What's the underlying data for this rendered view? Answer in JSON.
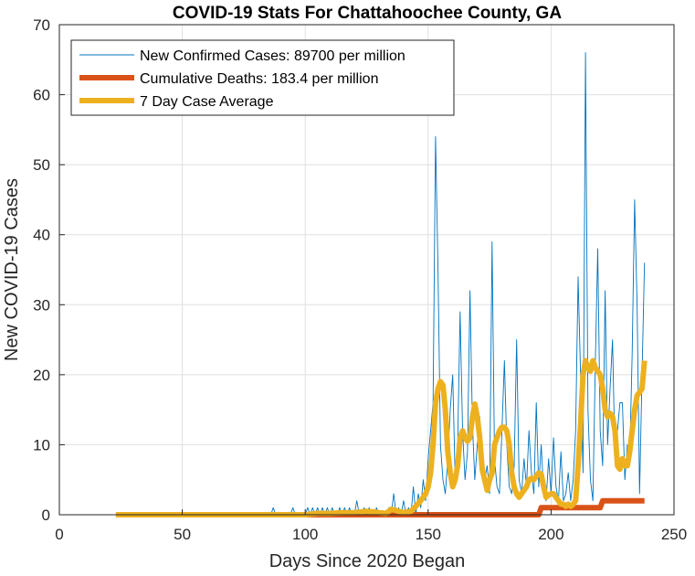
{
  "chart_data": {
    "type": "line",
    "title": "COVID-19 Stats For Chattahoochee County, GA",
    "xlabel": "Days Since 2020 Began",
    "ylabel": "New COVID-19 Cases",
    "xlim": [
      0,
      250
    ],
    "ylim": [
      0,
      70
    ],
    "xticks": [
      0,
      50,
      100,
      150,
      200,
      250
    ],
    "yticks": [
      0,
      10,
      20,
      30,
      40,
      50,
      60,
      70
    ],
    "grid": true,
    "legend_position": "top-left",
    "colors": {
      "new_cases": "#0072BD",
      "deaths": "#D95319",
      "avg": "#EDB120",
      "grid": "#DFDFDF",
      "axis": "#262626"
    },
    "series": [
      {
        "name": "New Confirmed Cases: 89700 per million",
        "x": [
          23,
          86,
          87,
          88,
          94,
          95,
          96,
          100,
          101,
          102,
          103,
          104,
          105,
          106,
          107,
          108,
          109,
          110,
          111,
          112,
          113,
          114,
          115,
          116,
          117,
          118,
          119,
          120,
          121,
          122,
          123,
          124,
          125,
          126,
          127,
          128,
          129,
          130,
          131,
          132,
          133,
          134,
          135,
          136,
          137,
          138,
          139,
          140,
          141,
          142,
          143,
          144,
          145,
          146,
          147,
          148,
          149,
          150,
          151,
          152,
          153,
          154,
          155,
          156,
          157,
          158,
          159,
          160,
          161,
          162,
          163,
          164,
          165,
          166,
          167,
          168,
          169,
          170,
          171,
          172,
          173,
          174,
          175,
          176,
          177,
          178,
          179,
          180,
          181,
          182,
          183,
          184,
          185,
          186,
          187,
          188,
          189,
          190,
          191,
          192,
          193,
          194,
          195,
          196,
          197,
          198,
          199,
          200,
          201,
          202,
          203,
          204,
          205,
          206,
          207,
          208,
          209,
          210,
          211,
          212,
          213,
          214,
          215,
          216,
          217,
          218,
          219,
          220,
          221,
          222,
          223,
          224,
          225,
          226,
          227,
          228,
          229,
          230,
          231,
          232,
          233,
          234,
          235,
          236,
          237,
          238
        ],
        "values": [
          0,
          0,
          1,
          0,
          0,
          1,
          0,
          0,
          1,
          0,
          1,
          0,
          1,
          0,
          1,
          0,
          1,
          0,
          1,
          0,
          0,
          1,
          0,
          1,
          0,
          1,
          0,
          0,
          2,
          0,
          0,
          1,
          0,
          1,
          0,
          0,
          1,
          0,
          0,
          0,
          0,
          1,
          0,
          3,
          0,
          1,
          0,
          2,
          0,
          1,
          0,
          4,
          0,
          3,
          1,
          5,
          2,
          8,
          12,
          16,
          54,
          35,
          10,
          5,
          3,
          8,
          15,
          20,
          5,
          10,
          29,
          12,
          5,
          9,
          32,
          13,
          5,
          10,
          14,
          8,
          5,
          7,
          3,
          39,
          8,
          4,
          3,
          12,
          22,
          10,
          4,
          3,
          7,
          25,
          5,
          3,
          8,
          4,
          12,
          6,
          3,
          16,
          4,
          10,
          3,
          2,
          8,
          3,
          11,
          4,
          2,
          9,
          2,
          3,
          6,
          2,
          5,
          12,
          34,
          20,
          6,
          66,
          15,
          5,
          2,
          22,
          38,
          12,
          7,
          32,
          10,
          18,
          25,
          8,
          12,
          16,
          16,
          5,
          10,
          8,
          23,
          45,
          30,
          3,
          20,
          36
        ],
        "style": "thin"
      },
      {
        "name": "Cumulative Deaths: 183.4 per million",
        "x": [
          23,
          195,
          196,
          220,
          221,
          238
        ],
        "values": [
          0,
          0,
          1,
          1,
          2,
          2
        ],
        "style": "thick"
      },
      {
        "name": "7 Day Case Average",
        "x": [
          23,
          90,
          95,
          100,
          105,
          110,
          115,
          120,
          125,
          128,
          130,
          133,
          135,
          138,
          140,
          143,
          145,
          147,
          149,
          150,
          151,
          152,
          153,
          154,
          155,
          156,
          157,
          158,
          159,
          160,
          161,
          162,
          163,
          164,
          165,
          166,
          167,
          168,
          169,
          170,
          171,
          172,
          173,
          174,
          175,
          176,
          177,
          178,
          179,
          180,
          181,
          182,
          183,
          184,
          185,
          186,
          187,
          188,
          189,
          190,
          191,
          192,
          193,
          194,
          195,
          196,
          197,
          198,
          199,
          200,
          201,
          202,
          203,
          204,
          205,
          206,
          207,
          208,
          209,
          210,
          211,
          212,
          213,
          214,
          215,
          216,
          217,
          218,
          219,
          220,
          221,
          222,
          223,
          224,
          225,
          226,
          227,
          228,
          229,
          230,
          231,
          232,
          233,
          234,
          235,
          236,
          237,
          238
        ],
        "values": [
          0,
          0,
          0,
          0,
          0.2,
          0.2,
          0.3,
          0.3,
          0.5,
          0.4,
          0.3,
          0.2,
          0.8,
          0.5,
          0.3,
          0.5,
          1.2,
          2,
          3,
          4,
          6,
          10,
          16,
          18,
          19,
          18.5,
          15,
          9,
          6,
          4,
          5,
          7,
          11,
          12,
          11,
          10.5,
          11,
          14,
          15.8,
          14,
          11,
          6.5,
          5,
          3.5,
          5,
          6,
          10,
          11,
          12,
          12.5,
          12.5,
          12,
          10,
          6,
          4,
          3,
          2.5,
          3,
          3.5,
          4,
          5,
          5.2,
          5,
          5.5,
          6,
          5.8,
          4,
          2.5,
          2.8,
          3,
          3,
          2.5,
          2,
          1.5,
          1.5,
          1.2,
          1.5,
          1.2,
          1.5,
          2,
          7,
          13,
          20,
          22,
          21,
          20.5,
          22,
          21,
          20.5,
          20,
          18,
          15,
          14,
          14.5,
          14,
          12,
          7,
          6.5,
          8,
          7,
          7,
          9,
          12,
          15,
          17,
          17.5,
          18,
          22
        ],
        "style": "thick"
      }
    ]
  }
}
